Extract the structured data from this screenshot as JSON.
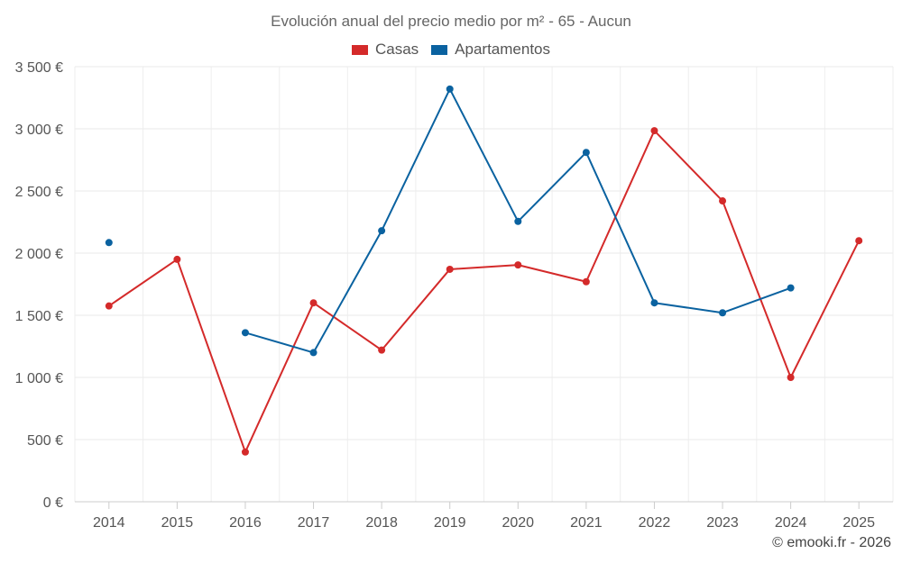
{
  "chart_data": {
    "type": "line",
    "title": "Evolución anual del precio medio por m² - 65 - Aucun",
    "categories": [
      "2014",
      "2015",
      "2016",
      "2017",
      "2018",
      "2019",
      "2020",
      "2021",
      "2022",
      "2023",
      "2024",
      "2025"
    ],
    "series": [
      {
        "name": "Casas",
        "color": "#d42a2a",
        "values": [
          1575,
          1950,
          400,
          1600,
          1220,
          1870,
          1905,
          1770,
          2985,
          2420,
          1000,
          2100
        ]
      },
      {
        "name": "Apartamentos",
        "color": "#0a62a0",
        "values": [
          2085,
          null,
          1360,
          1200,
          2180,
          3320,
          2255,
          2810,
          1600,
          1520,
          1720,
          null
        ]
      }
    ],
    "y_ticks": [
      "0 €",
      "500 €",
      "1 000 €",
      "1 500 €",
      "2 000 €",
      "2 500 €",
      "3 000 €",
      "3 500 €"
    ],
    "ylim": [
      0,
      3500
    ],
    "grid": true,
    "legend_position": "top-center"
  },
  "credit": "© emooki.fr - 2026"
}
